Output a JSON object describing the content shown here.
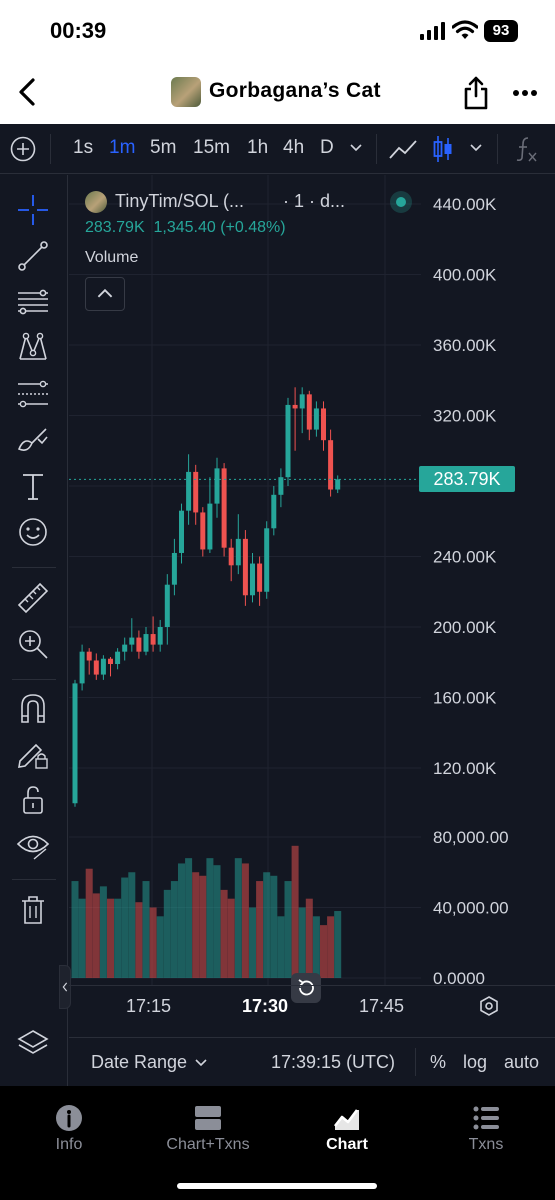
{
  "status_bar": {
    "time": "00:39",
    "battery": "93"
  },
  "header": {
    "title": "Gorbagana’s Cat"
  },
  "toolbar": {
    "timeframes": [
      "1s",
      "1m",
      "5m",
      "15m",
      "1h",
      "4h",
      "D"
    ],
    "active_timeframe": "1m"
  },
  "legend": {
    "pair": "TinyTim/SOL (...",
    "interval": "· 1 · d...",
    "last": "283.79K",
    "change": "1,345.40 (+0.48%)",
    "volume_label": "Volume"
  },
  "price_axis": {
    "labels": [
      "440.00K",
      "400.00K",
      "360.00K",
      "320.00K",
      "280.00K",
      "240.00K",
      "200.00K",
      "160.00K",
      "120.00K"
    ],
    "volume_labels": [
      "80,000.00",
      "40,000.00",
      "0.0000"
    ],
    "current_price_label": "283.79K"
  },
  "time_axis": {
    "labels": [
      "17:15",
      "17:30",
      "17:45"
    ]
  },
  "footer": {
    "date_range": "Date Range",
    "clock": "17:39:15 (UTC)",
    "percent": "%",
    "log": "log",
    "auto": "auto"
  },
  "tabs": [
    {
      "label": "Info",
      "icon": "info-icon"
    },
    {
      "label": "Chart+Txns",
      "icon": "split-layout-icon"
    },
    {
      "label": "Chart",
      "icon": "chart-icon"
    },
    {
      "label": "Txns",
      "icon": "list-icon"
    }
  ],
  "active_tab": "Chart",
  "colors": {
    "up": "#26a69a",
    "down": "#ef5350",
    "accent": "#2962ff",
    "background": "#131722"
  },
  "chart_data": {
    "type": "candlestick",
    "price_range": [
      120000,
      440000
    ],
    "volume_range": [
      0,
      80000
    ],
    "x_labels": [
      "17:15",
      "17:30",
      "17:45"
    ],
    "candles": [
      [
        100000,
        168000,
        98000,
        170000
      ],
      [
        168000,
        186000,
        164000,
        190000
      ],
      [
        186000,
        181000,
        173000,
        188000
      ],
      [
        181000,
        173000,
        170000,
        185000
      ],
      [
        173000,
        182000,
        170000,
        184000
      ],
      [
        182000,
        179000,
        172000,
        183000
      ],
      [
        179000,
        186000,
        176000,
        188000
      ],
      [
        186000,
        190000,
        181000,
        194000
      ],
      [
        190000,
        194000,
        186000,
        205000
      ],
      [
        194000,
        186000,
        182000,
        198000
      ],
      [
        186000,
        196000,
        184000,
        200000
      ],
      [
        196000,
        190000,
        186000,
        206000
      ],
      [
        190000,
        200000,
        186000,
        204000
      ],
      [
        200000,
        224000,
        190000,
        230000
      ],
      [
        224000,
        242000,
        218000,
        250000
      ],
      [
        242000,
        266000,
        236000,
        270000
      ],
      [
        266000,
        288000,
        258000,
        298000
      ],
      [
        288000,
        265000,
        258000,
        292000
      ],
      [
        265000,
        244000,
        240000,
        268000
      ],
      [
        244000,
        270000,
        242000,
        285000
      ],
      [
        270000,
        290000,
        262000,
        296000
      ],
      [
        290000,
        245000,
        240000,
        293000
      ],
      [
        245000,
        235000,
        226000,
        250000
      ],
      [
        235000,
        250000,
        230000,
        264000
      ],
      [
        250000,
        218000,
        212000,
        255000
      ],
      [
        218000,
        236000,
        214000,
        242000
      ],
      [
        236000,
        220000,
        212000,
        240000
      ],
      [
        220000,
        256000,
        216000,
        260000
      ],
      [
        256000,
        275000,
        252000,
        280000
      ],
      [
        275000,
        285000,
        268000,
        290000
      ],
      [
        285000,
        326000,
        280000,
        330000
      ],
      [
        326000,
        324000,
        300000,
        336000
      ],
      [
        324000,
        332000,
        310000,
        336000
      ],
      [
        332000,
        312000,
        306000,
        334000
      ],
      [
        312000,
        324000,
        308000,
        328000
      ],
      [
        324000,
        306000,
        300000,
        328000
      ],
      [
        306000,
        278000,
        274000,
        312000
      ],
      [
        278000,
        283790,
        276000,
        286000
      ]
    ],
    "volumes": [
      55000,
      45000,
      62000,
      48000,
      52000,
      45000,
      45000,
      57000,
      60000,
      43000,
      55000,
      40000,
      35000,
      50000,
      55000,
      65000,
      68000,
      60000,
      58000,
      68000,
      64000,
      50000,
      45000,
      68000,
      65000,
      40000,
      55000,
      60000,
      58000,
      35000,
      55000,
      75000,
      40000,
      45000,
      35000,
      30000,
      35000,
      38000
    ]
  }
}
